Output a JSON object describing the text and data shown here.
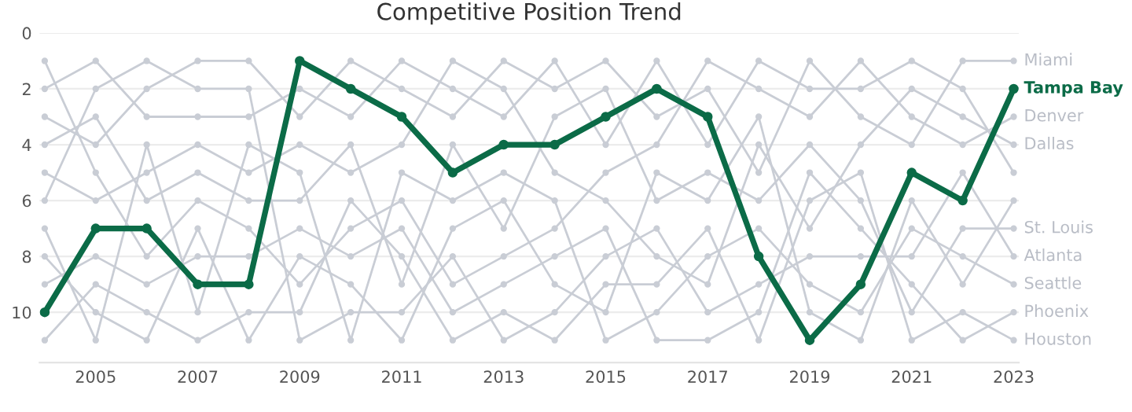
{
  "chart_data": {
    "type": "line",
    "title": "Competitive Position Trend",
    "x": [
      2004,
      2005,
      2006,
      2007,
      2008,
      2009,
      2010,
      2011,
      2012,
      2013,
      2014,
      2015,
      2016,
      2017,
      2018,
      2019,
      2020,
      2021,
      2022,
      2023
    ],
    "series": [
      {
        "name": "Miami",
        "color": "#c9cdd5",
        "values": [
          3,
          4,
          2,
          1,
          1,
          3,
          1,
          2,
          3,
          1,
          2,
          1,
          3,
          2,
          5,
          1,
          3,
          4,
          1,
          1
        ]
      },
      {
        "name": "Denver",
        "color": "#c9cdd5",
        "values": [
          1,
          5,
          8,
          6,
          7,
          9,
          7,
          6,
          9,
          8,
          7,
          5,
          4,
          1,
          2,
          3,
          1,
          3,
          4,
          3
        ]
      },
      {
        "name": "Dallas",
        "color": "#c9cdd5",
        "values": [
          5,
          6,
          5,
          4,
          5,
          4,
          5,
          4,
          1,
          2,
          5,
          6,
          8,
          9,
          4,
          7,
          4,
          2,
          3,
          4
        ]
      },
      {
        "name": null,
        "color": "#c9cdd5",
        "values": [
          2,
          1,
          3,
          3,
          3,
          2,
          3,
          1,
          2,
          3,
          1,
          4,
          1,
          4,
          1,
          2,
          2,
          1,
          2,
          5
        ]
      },
      {
        "name": null,
        "color": "#c9cdd5",
        "values": [
          8,
          10,
          11,
          7,
          11,
          8,
          9,
          11,
          7,
          6,
          9,
          10,
          5,
          6,
          3,
          10,
          11,
          6,
          9,
          6
        ]
      },
      {
        "name": "St. Louis",
        "color": "#c9cdd5",
        "values": [
          4,
          3,
          6,
          5,
          6,
          6,
          4,
          9,
          4,
          7,
          3,
          2,
          6,
          5,
          6,
          4,
          6,
          10,
          7,
          7
        ]
      },
      {
        "name": "Atlanta",
        "color": "#c9cdd5",
        "values": [
          6,
          2,
          1,
          2,
          2,
          11,
          10,
          10,
          8,
          11,
          10,
          8,
          7,
          10,
          9,
          8,
          8,
          8,
          5,
          8
        ]
      },
      {
        "name": "Seattle",
        "color": "#c9cdd5",
        "values": [
          7,
          11,
          4,
          10,
          4,
          5,
          11,
          5,
          6,
          5,
          6,
          11,
          10,
          8,
          7,
          9,
          10,
          7,
          8,
          9
        ]
      },
      {
        "name": "Phoenix",
        "color": "#c9cdd5",
        "values": [
          9,
          8,
          9,
          8,
          8,
          7,
          8,
          7,
          10,
          9,
          8,
          7,
          11,
          11,
          10,
          5,
          7,
          9,
          11,
          10
        ]
      },
      {
        "name": "Houston",
        "color": "#c9cdd5",
        "values": [
          11,
          9,
          10,
          11,
          10,
          10,
          6,
          8,
          11,
          10,
          11,
          9,
          9,
          7,
          11,
          6,
          5,
          11,
          10,
          11
        ]
      },
      {
        "name": "Tampa Bay",
        "color": "#0b6b47",
        "values": [
          10,
          7,
          7,
          9,
          9,
          1,
          2,
          3,
          5,
          4,
          4,
          3,
          2,
          3,
          8,
          11,
          9,
          5,
          6,
          2
        ]
      }
    ],
    "xlim": [
      2003.9,
      2023.1
    ],
    "xticks": [
      2005,
      2007,
      2009,
      2011,
      2013,
      2015,
      2017,
      2019,
      2021,
      2023
    ],
    "ylim": [
      11.8,
      0
    ],
    "yticks": [
      0,
      2,
      4,
      6,
      8,
      10
    ],
    "grid": "y",
    "legend": false,
    "marker": "circle",
    "line_style": "solid"
  }
}
